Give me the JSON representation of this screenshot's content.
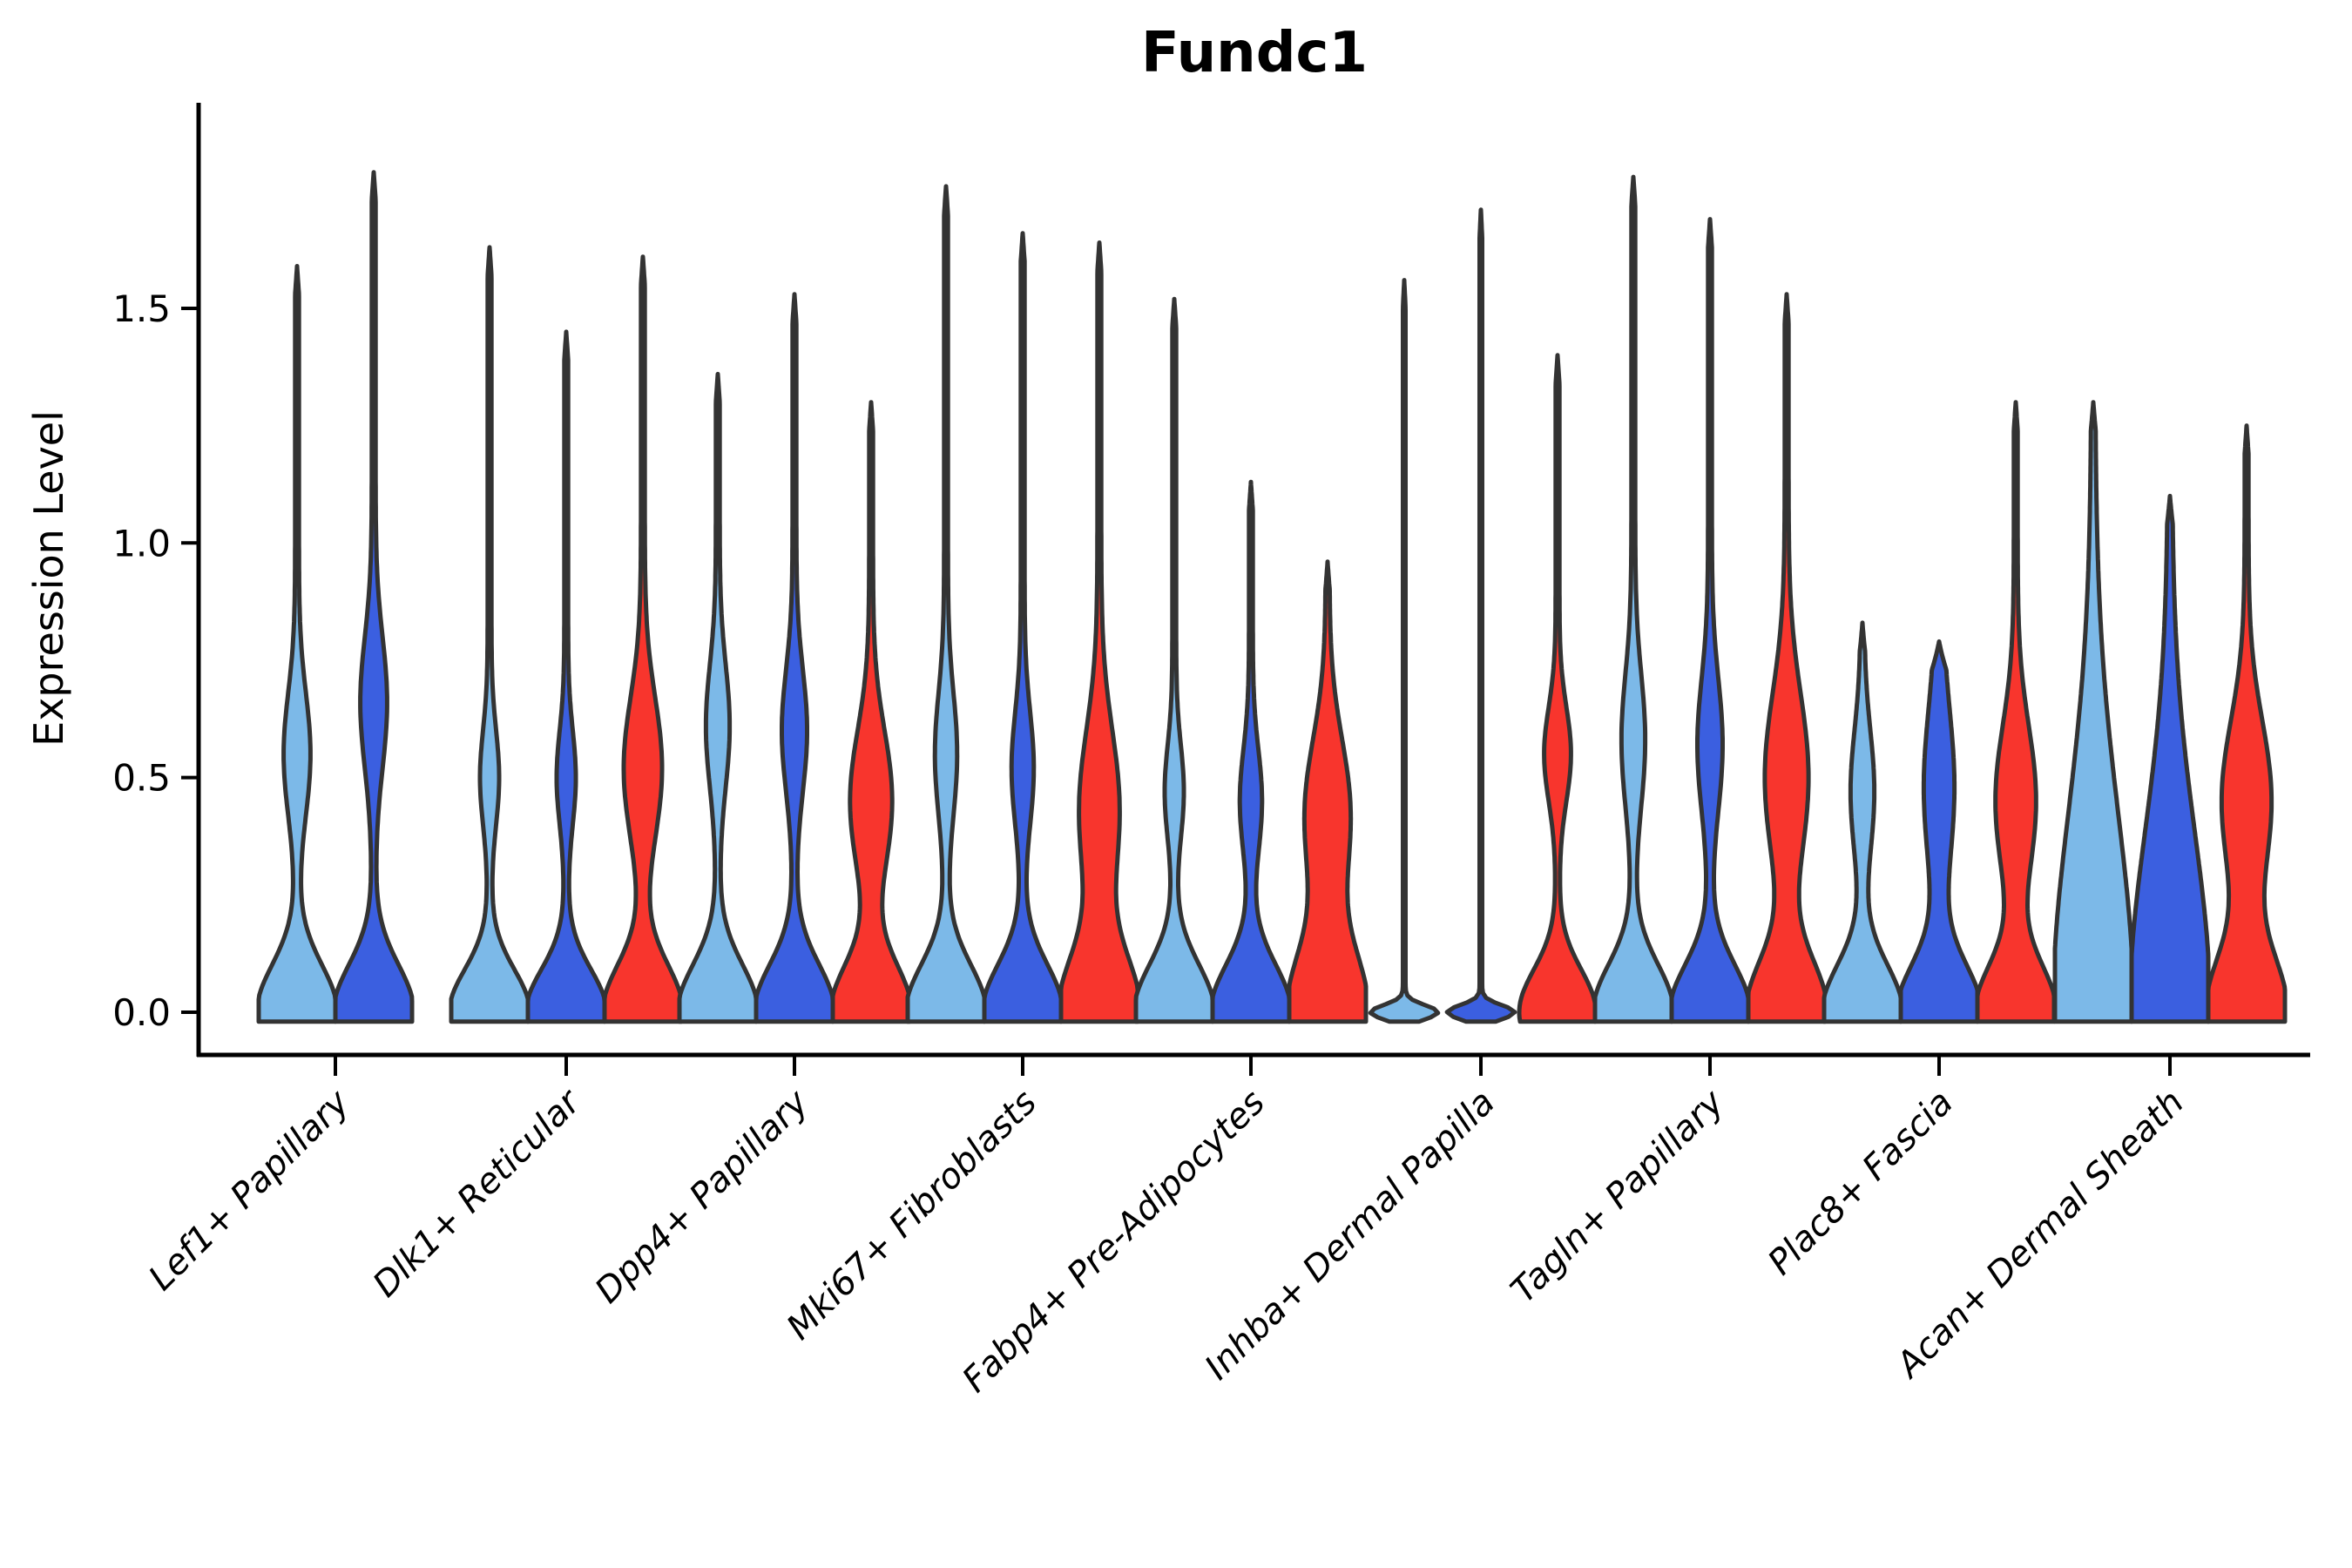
{
  "chart_data": {
    "type": "violin",
    "title": "Fundc1",
    "ylabel": "Expression Level",
    "xlabel": "",
    "yticks": [
      "0.0",
      "0.5",
      "1.0",
      "1.5"
    ],
    "ytick_values": [
      0.0,
      0.5,
      1.0,
      1.5
    ],
    "ylim": [
      -0.09,
      1.94
    ],
    "grid": false,
    "legend": "none",
    "colors": {
      "series_fills": [
        "#7CB9E8",
        "#3B5FE0",
        "#F8352D"
      ],
      "violin_outline": "#333333",
      "axis": "#000000",
      "background": "#ffffff"
    },
    "categories": [
      "Lef1+ Papillary",
      "Dlk1+ Reticular",
      "Dpp4+ Papillary",
      "Mki67+ Fibroblasts",
      "Fabp4+ Pre-Adipocytes",
      "Inhba+ Dermal Papilla",
      "Tagln+ Papillary",
      "Plac8+ Fascia",
      "Acan+ Dermal Sheath"
    ],
    "groups": [
      {
        "category": "Lef1+ Papillary",
        "violins": [
          {
            "color": 0,
            "max": 1.59,
            "bulge_center": 0.55,
            "bulge_amp": 0.3,
            "bulge_sigma": 0.13,
            "base_amp": 1.0,
            "base_sigma": 0.1,
            "stem": 0.05
          },
          {
            "color": 1,
            "max": 1.79,
            "bulge_center": 0.66,
            "bulge_amp": 0.3,
            "bulge_sigma": 0.14,
            "base_amp": 1.0,
            "base_sigma": 0.1,
            "stem": 0.05
          }
        ]
      },
      {
        "category": "Dlk1+ Reticular",
        "violins": [
          {
            "color": 0,
            "max": 1.63,
            "bulge_center": 0.5,
            "bulge_amp": 0.2,
            "bulge_sigma": 0.1,
            "base_amp": 1.0,
            "base_sigma": 0.09,
            "stem": 0.05
          },
          {
            "color": 1,
            "max": 1.45,
            "bulge_center": 0.5,
            "bulge_amp": 0.2,
            "bulge_sigma": 0.1,
            "base_amp": 1.0,
            "base_sigma": 0.09,
            "stem": 0.05
          },
          {
            "color": 2,
            "max": 1.61,
            "bulge_center": 0.52,
            "bulge_amp": 0.45,
            "bulge_sigma": 0.15,
            "base_amp": 1.0,
            "base_sigma": 0.1,
            "stem": 0.05
          }
        ]
      },
      {
        "category": "Dpp4+ Papillary",
        "violins": [
          {
            "color": 0,
            "max": 1.36,
            "bulge_center": 0.61,
            "bulge_amp": 0.26,
            "bulge_sigma": 0.13,
            "base_amp": 1.0,
            "base_sigma": 0.1,
            "stem": 0.05
          },
          {
            "color": 1,
            "max": 1.53,
            "bulge_center": 0.6,
            "bulge_amp": 0.28,
            "bulge_sigma": 0.13,
            "base_amp": 1.0,
            "base_sigma": 0.1,
            "stem": 0.05
          },
          {
            "color": 2,
            "max": 1.3,
            "bulge_center": 0.45,
            "bulge_amp": 0.5,
            "bulge_sigma": 0.15,
            "base_amp": 1.0,
            "base_sigma": 0.1,
            "stem": 0.05
          }
        ]
      },
      {
        "category": "Mki67+ Fibroblasts",
        "violins": [
          {
            "color": 0,
            "max": 1.76,
            "bulge_center": 0.55,
            "bulge_amp": 0.24,
            "bulge_sigma": 0.13,
            "base_amp": 1.0,
            "base_sigma": 0.1,
            "stem": 0.05
          },
          {
            "color": 1,
            "max": 1.66,
            "bulge_center": 0.52,
            "bulge_amp": 0.24,
            "bulge_sigma": 0.12,
            "base_amp": 1.0,
            "base_sigma": 0.1,
            "stem": 0.05
          },
          {
            "color": 2,
            "max": 1.64,
            "bulge_center": 0.43,
            "bulge_amp": 0.48,
            "bulge_sigma": 0.17,
            "base_amp": 1.0,
            "base_sigma": 0.12,
            "stem": 0.05
          }
        ]
      },
      {
        "category": "Fabp4+ Pre-Adipocytes",
        "violins": [
          {
            "color": 0,
            "max": 1.52,
            "bulge_center": 0.47,
            "bulge_amp": 0.2,
            "bulge_sigma": 0.1,
            "base_amp": 1.0,
            "base_sigma": 0.1,
            "stem": 0.05
          },
          {
            "color": 1,
            "max": 1.13,
            "bulge_center": 0.45,
            "bulge_amp": 0.24,
            "bulge_sigma": 0.11,
            "base_amp": 1.0,
            "base_sigma": 0.1,
            "stem": 0.05
          },
          {
            "color": 2,
            "max": 0.96,
            "bulge_center": 0.42,
            "bulge_amp": 0.55,
            "bulge_sigma": 0.16,
            "base_amp": 1.0,
            "base_sigma": 0.13,
            "stem": 0.05
          }
        ]
      },
      {
        "category": "Inhba+ Dermal Papilla",
        "violins": [
          {
            "color": 0,
            "max": 1.56,
            "bulge_center": 0.0,
            "bulge_amp": 0.0,
            "bulge_sigma": 0.1,
            "base_amp": 0.85,
            "base_sigma": 0.015,
            "stem": 0.035
          },
          {
            "color": 1,
            "max": 1.71,
            "bulge_center": 0.0,
            "bulge_amp": 0.0,
            "bulge_sigma": 0.1,
            "base_amp": 0.85,
            "base_sigma": 0.015,
            "stem": 0.035
          },
          {
            "color": 2,
            "max": 1.4,
            "bulge_center": 0.55,
            "bulge_amp": 0.3,
            "bulge_sigma": 0.1,
            "base_amp": 0.95,
            "base_sigma": 0.09,
            "stem": 0.05
          }
        ]
      },
      {
        "category": "Tagln+ Papillary",
        "violins": [
          {
            "color": 0,
            "max": 1.78,
            "bulge_center": 0.58,
            "bulge_amp": 0.26,
            "bulge_sigma": 0.14,
            "base_amp": 1.0,
            "base_sigma": 0.1,
            "stem": 0.05
          },
          {
            "color": 1,
            "max": 1.69,
            "bulge_center": 0.57,
            "bulge_amp": 0.28,
            "bulge_sigma": 0.14,
            "base_amp": 1.0,
            "base_sigma": 0.1,
            "stem": 0.05
          },
          {
            "color": 2,
            "max": 1.53,
            "bulge_center": 0.5,
            "bulge_amp": 0.52,
            "bulge_sigma": 0.18,
            "base_amp": 1.0,
            "base_sigma": 0.11,
            "stem": 0.05
          }
        ]
      },
      {
        "category": "Plac8+ Fascia",
        "violins": [
          {
            "color": 0,
            "max": 0.83,
            "bulge_center": 0.47,
            "bulge_amp": 0.26,
            "bulge_sigma": 0.13,
            "base_amp": 1.0,
            "base_sigma": 0.1,
            "stem": 0.05
          },
          {
            "color": 1,
            "max": 0.79,
            "bulge_center": 0.48,
            "bulge_amp": 0.3,
            "bulge_sigma": 0.16,
            "base_amp": 1.0,
            "base_sigma": 0.1,
            "stem": 0.1
          },
          {
            "color": 2,
            "max": 1.3,
            "bulge_center": 0.45,
            "bulge_amp": 0.48,
            "bulge_sigma": 0.16,
            "base_amp": 1.0,
            "base_sigma": 0.1,
            "stem": 0.05
          }
        ]
      },
      {
        "category": "Acan+ Dermal Sheath",
        "violins": [
          {
            "color": 0,
            "max": 1.3,
            "bulge_center": 0.0,
            "bulge_amp": 0.0,
            "bulge_sigma": 0.1,
            "base_amp": 1.0,
            "base_sigma": 0.42,
            "stem": 0.05
          },
          {
            "color": 1,
            "max": 1.1,
            "bulge_center": 0.0,
            "bulge_amp": 0.0,
            "bulge_sigma": 0.1,
            "base_amp": 1.0,
            "base_sigma": 0.38,
            "stem": 0.05
          },
          {
            "color": 2,
            "max": 1.25,
            "bulge_center": 0.45,
            "bulge_amp": 0.6,
            "bulge_sigma": 0.17,
            "base_amp": 1.0,
            "base_sigma": 0.12,
            "stem": 0.05
          }
        ]
      }
    ]
  }
}
